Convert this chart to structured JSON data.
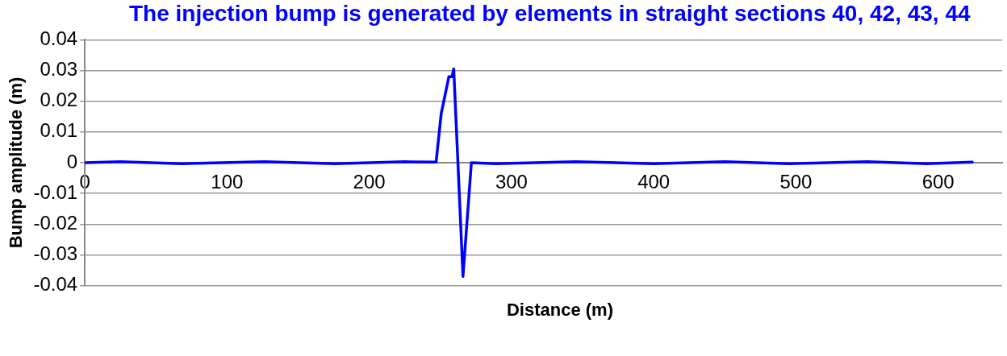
{
  "chart_data": {
    "type": "line",
    "title": "The injection bump is generated by elements in straight sections 40, 42, 43, 44",
    "xlabel": "Distance (m)",
    "ylabel": "Bump amplitude (m)",
    "xlim": [
      0,
      645
    ],
    "xticks": [
      0,
      100,
      200,
      300,
      400,
      500,
      600
    ],
    "ylim": [
      -0.04,
      0.04
    ],
    "yticks": [
      -0.04,
      -0.03,
      -0.02,
      -0.01,
      0,
      0.01,
      0.02,
      0.03,
      0.04
    ],
    "grid": "y",
    "legend": false,
    "marker": "none",
    "line_style": "solid",
    "series": [
      {
        "color": "#0000ff",
        "x": [
          0,
          25,
          68,
          126,
          176,
          225,
          247,
          250.6,
          256,
          258.2,
          259.4,
          265.9,
          271.8,
          289,
          345,
          400,
          450,
          495,
          550,
          592,
          624
        ],
        "values": [
          0,
          0.0003,
          -0.0003,
          0.0003,
          -0.0003,
          0.0003,
          0.0002,
          0.016,
          0.028,
          0.028,
          0.0305,
          -0.037,
          0,
          -0.0003,
          0.0003,
          -0.0003,
          0.0003,
          -0.0003,
          0.0003,
          -0.0003,
          0.0002
        ]
      }
    ]
  }
}
